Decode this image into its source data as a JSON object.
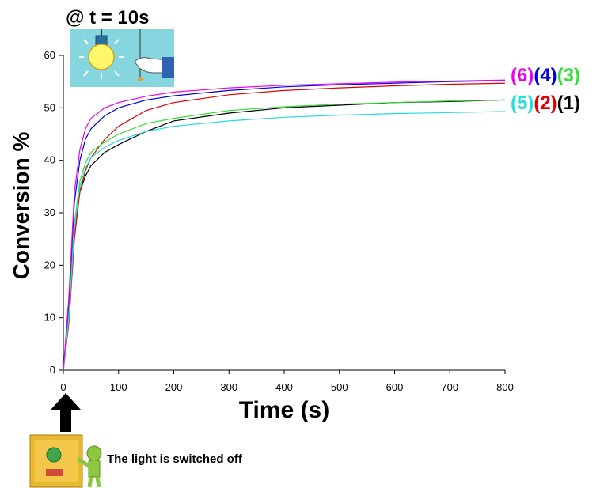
{
  "chart_data": {
    "type": "line",
    "xlabel": "Time (s)",
    "ylabel": "Conversion %",
    "xlim": [
      0,
      800
    ],
    "ylim": [
      0,
      60
    ],
    "x_ticks": [
      0,
      100,
      200,
      300,
      400,
      500,
      600,
      700,
      800
    ],
    "y_ticks": [
      0,
      10,
      20,
      30,
      40,
      50,
      60
    ],
    "grid": false,
    "series": [
      {
        "name": "(1)",
        "color": "#000000",
        "x": [
          0,
          10,
          20,
          30,
          40,
          50,
          75,
          100,
          150,
          200,
          300,
          400,
          500,
          600,
          700,
          800
        ],
        "y": [
          0,
          10,
          27,
          34,
          37,
          39,
          41.5,
          43,
          45.5,
          47.5,
          49,
          50,
          50.5,
          51,
          51.2,
          51.5
        ]
      },
      {
        "name": "(2)",
        "color": "#e00000",
        "x": [
          0,
          10,
          20,
          30,
          40,
          50,
          75,
          100,
          150,
          200,
          300,
          400,
          500,
          600,
          700,
          800
        ],
        "y": [
          0,
          9,
          25,
          34,
          38,
          40.5,
          44,
          46.5,
          49.5,
          51,
          52.5,
          53.3,
          53.8,
          54.2,
          54.5,
          54.7
        ]
      },
      {
        "name": "(3)",
        "color": "#33dd33",
        "x": [
          0,
          10,
          20,
          30,
          40,
          50,
          75,
          100,
          150,
          200,
          300,
          400,
          500,
          600,
          700,
          800
        ],
        "y": [
          0,
          11,
          28,
          36,
          39.5,
          41.5,
          43.5,
          45,
          47,
          48,
          49.5,
          50.2,
          50.7,
          51,
          51.3,
          51.5
        ]
      },
      {
        "name": "(4)",
        "color": "#0000dd",
        "x": [
          0,
          10,
          20,
          30,
          40,
          50,
          75,
          100,
          150,
          200,
          300,
          400,
          500,
          600,
          700,
          800
        ],
        "y": [
          0,
          13,
          32,
          40,
          44,
          46,
          48.5,
          50,
          51.5,
          52.3,
          53.3,
          54,
          54.4,
          54.7,
          55,
          55.2
        ]
      },
      {
        "name": "(5)",
        "color": "#22dddd",
        "x": [
          0,
          10,
          20,
          30,
          40,
          50,
          75,
          100,
          150,
          200,
          300,
          400,
          500,
          600,
          700,
          800
        ],
        "y": [
          0,
          10,
          27,
          35,
          38.5,
          40.5,
          42.5,
          43.8,
          45.5,
          46.5,
          47.5,
          48.2,
          48.6,
          48.9,
          49.1,
          49.3
        ]
      },
      {
        "name": "(6)",
        "color": "#ee00ee",
        "x": [
          0,
          10,
          20,
          30,
          40,
          50,
          75,
          100,
          150,
          200,
          300,
          400,
          500,
          600,
          700,
          800
        ],
        "y": [
          0,
          14,
          34,
          42,
          46,
          48,
          50,
          51,
          52.2,
          53,
          53.8,
          54.3,
          54.6,
          54.9,
          55.1,
          55.3
        ]
      }
    ],
    "series_labels_row1": [
      {
        "text": "(6)",
        "color": "#ee00ee"
      },
      {
        "text": "(4)",
        "color": "#0000dd"
      },
      {
        "text": "(3)",
        "color": "#33dd33"
      }
    ],
    "series_labels_row2": [
      {
        "text": "(5)",
        "color": "#22dddd"
      },
      {
        "text": "(2)",
        "color": "#e00000"
      },
      {
        "text": "(1)",
        "color": "#000000"
      }
    ],
    "annotations": {
      "top": "@ t = 10s",
      "bottom": "The light is switched off"
    },
    "icons": [
      "light-bulb-pull-switch-icon",
      "up-arrow-icon",
      "switch-panel-person-icon"
    ]
  }
}
